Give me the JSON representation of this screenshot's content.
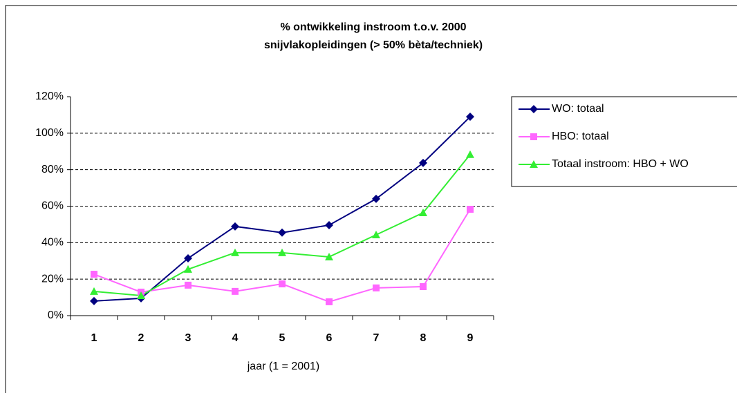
{
  "chart_data": {
    "type": "line",
    "title": "% ontwikkeling instroom t.o.v. 2000",
    "subtitle": "snijvlakopleidingen (> 50% bèta/techniek)",
    "x_label": "jaar (1 = 2001)",
    "categories": [
      "1",
      "2",
      "3",
      "4",
      "5",
      "6",
      "7",
      "8",
      "9"
    ],
    "series": [
      {
        "name": "WO: totaal",
        "color": "#000080",
        "marker": "diamond",
        "values": [
          8,
          9.5,
          31.4,
          48.9,
          45.5,
          49.6,
          64,
          83.7,
          109
        ]
      },
      {
        "name": "HBO: totaal",
        "color": "#ff66ff",
        "marker": "square",
        "values": [
          22.7,
          12.9,
          16.7,
          13.3,
          17.4,
          7.6,
          15.2,
          15.9,
          58.3
        ]
      },
      {
        "name": "Totaal instroom: HBO + WO",
        "color": "#33ee33",
        "marker": "triangle",
        "values": [
          13.3,
          11,
          25.4,
          34.5,
          34.5,
          32.2,
          44.3,
          56.4,
          88.3
        ]
      }
    ],
    "ylim": [
      0,
      120
    ],
    "yticks": [
      {
        "value": 0,
        "label": "0%"
      },
      {
        "value": 20,
        "label": "20%"
      },
      {
        "value": 40,
        "label": "40%"
      },
      {
        "value": 60,
        "label": "60%"
      },
      {
        "value": 80,
        "label": "80%"
      },
      {
        "value": 100,
        "label": "100%"
      },
      {
        "value": 120,
        "label": "120%"
      }
    ],
    "grid": true,
    "legend": "right"
  }
}
